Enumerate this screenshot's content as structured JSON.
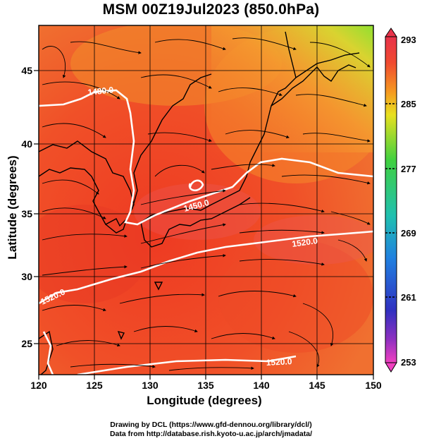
{
  "title": "MSM 00Z19Jul2023 (850.0hPa)",
  "xlabel": "Longitude (degrees)",
  "ylabel": "Latitude  (degrees)",
  "credits": {
    "line1": "Drawing by DCL (https://www.gfd-dennou.org/library/dcl/)",
    "line2": "Data from http://database.rish.kyoto-u.ac.jp/arch/jmadata/"
  },
  "map": {
    "lon_range": [
      120,
      150
    ],
    "lat_range": [
      22.5,
      47.5
    ],
    "lon_ticks": [
      "120",
      "125",
      "130",
      "135",
      "140",
      "145",
      "150"
    ],
    "lat_ticks": [
      "25",
      "30",
      "35",
      "40",
      "45"
    ],
    "contour_labels": [
      "1480.0",
      "1450.0",
      "1520.0",
      "1520.0",
      "1520.0"
    ]
  },
  "colorbar": {
    "labels": [
      "293",
      "285",
      "277",
      "269",
      "261",
      "253"
    ],
    "colors": [
      "#e8334a",
      "#f05a2a",
      "#f5a020",
      "#e6e020",
      "#60d840",
      "#20c0a0",
      "#2090e0",
      "#3040d0",
      "#8030c0",
      "#e040c0"
    ]
  }
}
